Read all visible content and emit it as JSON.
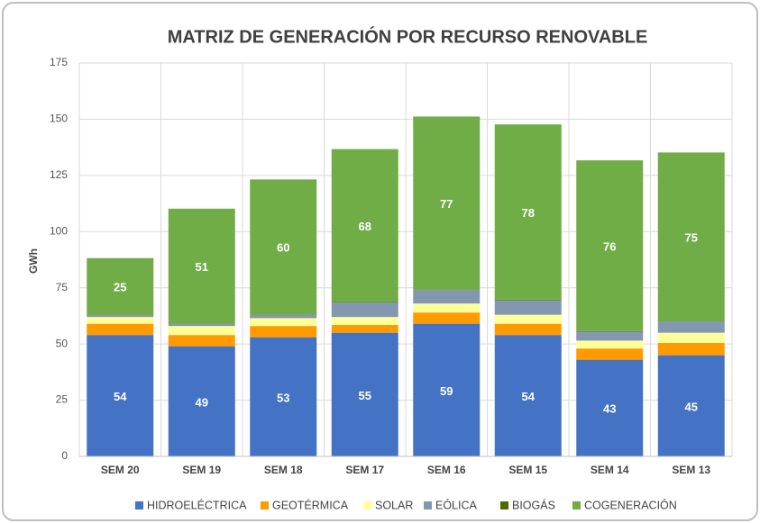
{
  "chart_data": {
    "type": "stacked_bar",
    "title": "MATRIZ DE GENERACIÓN POR RECURSO RENOVABLE",
    "y_label": "GWh",
    "categories": [
      "SEM 20",
      "SEM 19",
      "SEM 18",
      "SEM 17",
      "SEM 16",
      "SEM 15",
      "SEM 14",
      "SEM 13"
    ],
    "series": [
      {
        "name": "HIDROELÉCTRICA",
        "color": "#4472c4",
        "data_labels": true,
        "values": [
          54,
          49,
          53,
          55,
          59,
          54,
          43,
          45
        ]
      },
      {
        "name": "GEOTÉRMICA",
        "color": "#ff9a00",
        "values": [
          5,
          5,
          5,
          3.5,
          5,
          5,
          5,
          5.5
        ]
      },
      {
        "name": "SOLAR",
        "color": "#ffff99",
        "values": [
          3,
          4,
          3.5,
          3.5,
          4,
          4,
          3.5,
          4.5
        ]
      },
      {
        "name": "EÓLICA",
        "color": "#8497b0",
        "values": [
          1,
          1,
          1.5,
          6.5,
          6,
          6.5,
          4,
          5
        ]
      },
      {
        "name": "BIOGÁS",
        "color": "#4d6b00",
        "values": [
          0.2,
          0.2,
          0.2,
          0.2,
          0.2,
          0.2,
          0.2,
          0.2
        ]
      },
      {
        "name": "COGENERACIÓN",
        "color": "#70ad47",
        "data_labels": true,
        "values": [
          25,
          51,
          60,
          68,
          77,
          78,
          76,
          75
        ]
      }
    ],
    "ylim": [
      0,
      175
    ],
    "yticks": [
      0,
      25,
      50,
      75,
      100,
      125,
      150,
      175
    ],
    "grid": true
  }
}
